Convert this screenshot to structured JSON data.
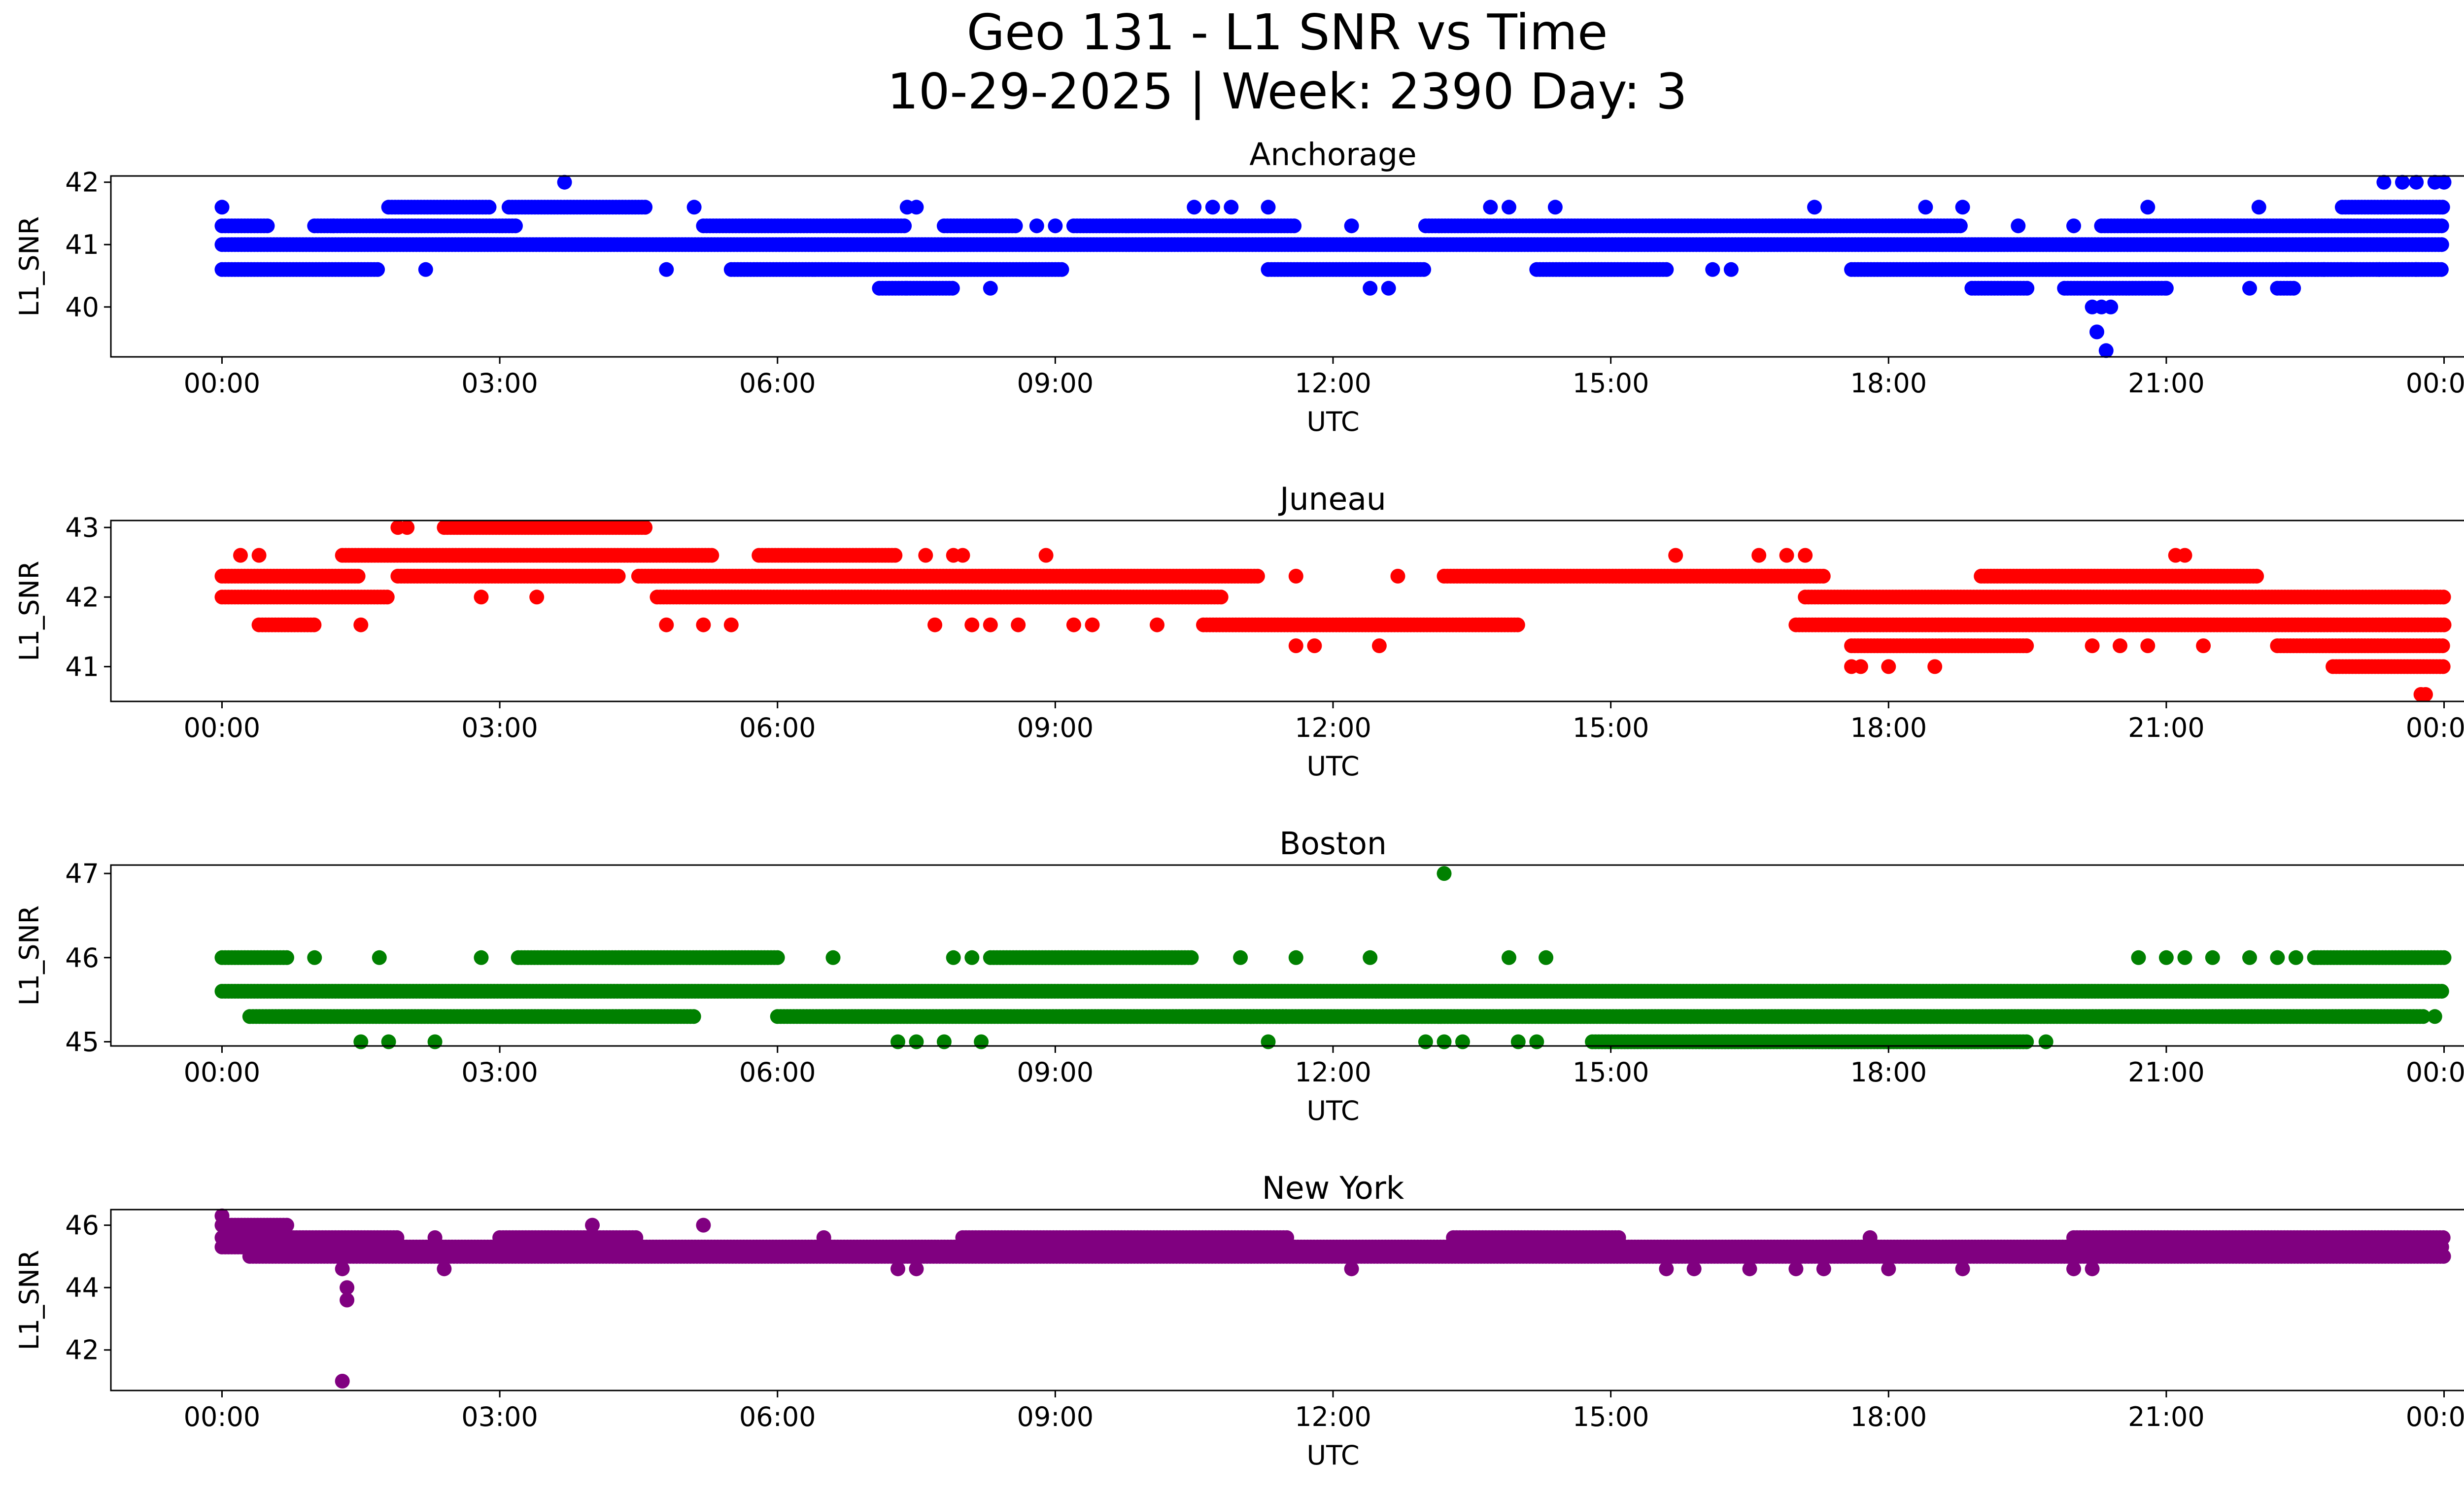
{
  "figure": {
    "title_line1": "Geo 131 - L1 SNR vs Time",
    "title_line2": "10-29-2025 | Week: 2390 Day: 3"
  },
  "chart_data": [
    {
      "type": "scatter",
      "title": "Anchorage",
      "xlabel": "UTC",
      "ylabel": "L1_SNR",
      "color": "#0000ff",
      "xlim": [
        "-01:12",
        "25:12"
      ],
      "ylim": [
        39.2,
        42.1
      ],
      "xticks": [
        "00:00",
        "03:00",
        "06:00",
        "09:00",
        "12:00",
        "15:00",
        "18:00",
        "21:00",
        "00:00"
      ],
      "yticks": [
        40,
        41,
        42
      ],
      "bands": [
        {
          "y": 41.0,
          "segments": [
            [
              0.0,
              24.0
            ]
          ]
        },
        {
          "y": 41.3,
          "segments": [
            [
              0.0,
              0.5
            ],
            [
              1.0,
              3.2
            ],
            [
              5.2,
              7.4
            ],
            [
              7.8,
              8.6
            ],
            [
              9.2,
              11.6
            ],
            [
              13.0,
              18.8
            ],
            [
              20.3,
              24.0
            ]
          ]
        },
        {
          "y": 40.6,
          "segments": [
            [
              0.0,
              1.7
            ],
            [
              5.5,
              9.1
            ],
            [
              11.3,
              13.0
            ],
            [
              14.2,
              15.6
            ],
            [
              17.6,
              24.0
            ]
          ]
        },
        {
          "y": 41.6,
          "segments": [
            [
              1.8,
              2.9
            ],
            [
              3.1,
              4.6
            ],
            [
              22.9,
              24.0
            ]
          ]
        },
        {
          "y": 40.3,
          "segments": [
            [
              7.1,
              7.4
            ],
            [
              7.4,
              7.9
            ],
            [
              18.9,
              19.5
            ],
            [
              19.9,
              21.0
            ],
            [
              22.2,
              22.4
            ]
          ]
        }
      ],
      "points": [
        {
          "x": 0.0,
          "y": 41.6
        },
        {
          "x": 1.2,
          "y": 41.3
        },
        {
          "x": 2.2,
          "y": 40.6
        },
        {
          "x": 3.7,
          "y": 42.0
        },
        {
          "x": 4.8,
          "y": 40.6
        },
        {
          "x": 5.1,
          "y": 41.6
        },
        {
          "x": 7.4,
          "y": 41.6
        },
        {
          "x": 7.5,
          "y": 41.6
        },
        {
          "x": 8.3,
          "y": 40.3
        },
        {
          "x": 8.8,
          "y": 41.3
        },
        {
          "x": 9.0,
          "y": 41.3
        },
        {
          "x": 10.5,
          "y": 41.6
        },
        {
          "x": 10.7,
          "y": 41.6
        },
        {
          "x": 10.9,
          "y": 41.6
        },
        {
          "x": 11.3,
          "y": 41.6
        },
        {
          "x": 12.2,
          "y": 41.3
        },
        {
          "x": 12.4,
          "y": 40.3
        },
        {
          "x": 12.6,
          "y": 40.3
        },
        {
          "x": 13.7,
          "y": 41.6
        },
        {
          "x": 13.9,
          "y": 41.6
        },
        {
          "x": 14.4,
          "y": 41.6
        },
        {
          "x": 16.1,
          "y": 40.6
        },
        {
          "x": 16.3,
          "y": 40.6
        },
        {
          "x": 17.2,
          "y": 41.6
        },
        {
          "x": 18.4,
          "y": 41.6
        },
        {
          "x": 18.8,
          "y": 41.6
        },
        {
          "x": 19.4,
          "y": 41.3
        },
        {
          "x": 20.0,
          "y": 41.3
        },
        {
          "x": 20.2,
          "y": 40.0
        },
        {
          "x": 20.3,
          "y": 40.0
        },
        {
          "x": 20.4,
          "y": 40.0
        },
        {
          "x": 20.25,
          "y": 39.6
        },
        {
          "x": 20.35,
          "y": 39.3
        },
        {
          "x": 20.8,
          "y": 41.6
        },
        {
          "x": 21.0,
          "y": 40.3
        },
        {
          "x": 21.9,
          "y": 40.3
        },
        {
          "x": 22.0,
          "y": 41.6
        },
        {
          "x": 22.3,
          "y": 40.6
        },
        {
          "x": 22.7,
          "y": 40.6
        },
        {
          "x": 23.0,
          "y": 40.6
        },
        {
          "x": 23.3,
          "y": 40.6
        },
        {
          "x": 23.35,
          "y": 42.0
        },
        {
          "x": 23.55,
          "y": 42.0
        },
        {
          "x": 23.7,
          "y": 42.0
        },
        {
          "x": 23.9,
          "y": 42.0
        },
        {
          "x": 24.0,
          "y": 42.0
        },
        {
          "x": 23.7,
          "y": 40.6
        }
      ]
    },
    {
      "type": "scatter",
      "title": "Juneau",
      "xlabel": "UTC",
      "ylabel": "L1_SNR",
      "color": "#ff0000",
      "xlim": [
        "-01:12",
        "25:12"
      ],
      "ylim": [
        40.5,
        43.1
      ],
      "xticks": [
        "00:00",
        "03:00",
        "06:00",
        "09:00",
        "12:00",
        "15:00",
        "18:00",
        "21:00",
        "00:00"
      ],
      "yticks": [
        41,
        42,
        43
      ],
      "bands": [
        {
          "y": 42.3,
          "segments": [
            [
              0.0,
              1.5
            ],
            [
              1.9,
              4.3
            ],
            [
              4.5,
              11.2
            ],
            [
              13.2,
              17.3
            ],
            [
              19.0,
              22.0
            ]
          ]
        },
        {
          "y": 42.0,
          "segments": [
            [
              0.0,
              1.8
            ],
            [
              4.7,
              10.8
            ],
            [
              17.1,
              24.0
            ]
          ]
        },
        {
          "y": 42.6,
          "segments": [
            [
              1.3,
              5.3
            ],
            [
              5.8,
              7.3
            ]
          ]
        },
        {
          "y": 43.0,
          "segments": [
            [
              2.4,
              4.6
            ]
          ]
        },
        {
          "y": 41.6,
          "segments": [
            [
              0.4,
              1.0
            ],
            [
              10.6,
              14.0
            ],
            [
              17.0,
              24.0
            ]
          ]
        },
        {
          "y": 41.3,
          "segments": [
            [
              17.6,
              19.5
            ],
            [
              22.2,
              24.0
            ]
          ]
        },
        {
          "y": 41.0,
          "segments": [
            [
              22.8,
              24.0
            ]
          ]
        }
      ],
      "points": [
        {
          "x": 0.2,
          "y": 42.6
        },
        {
          "x": 0.4,
          "y": 42.6
        },
        {
          "x": 1.5,
          "y": 41.6
        },
        {
          "x": 1.9,
          "y": 43.0
        },
        {
          "x": 2.0,
          "y": 43.0
        },
        {
          "x": 2.8,
          "y": 42.0
        },
        {
          "x": 3.4,
          "y": 42.0
        },
        {
          "x": 4.8,
          "y": 41.6
        },
        {
          "x": 5.2,
          "y": 41.6
        },
        {
          "x": 5.5,
          "y": 41.6
        },
        {
          "x": 7.6,
          "y": 42.6
        },
        {
          "x": 7.7,
          "y": 41.6
        },
        {
          "x": 7.9,
          "y": 42.6
        },
        {
          "x": 8.0,
          "y": 42.6
        },
        {
          "x": 8.1,
          "y": 41.6
        },
        {
          "x": 8.3,
          "y": 41.6
        },
        {
          "x": 8.6,
          "y": 41.6
        },
        {
          "x": 8.9,
          "y": 42.6
        },
        {
          "x": 9.2,
          "y": 41.6
        },
        {
          "x": 9.4,
          "y": 41.6
        },
        {
          "x": 10.1,
          "y": 41.6
        },
        {
          "x": 11.6,
          "y": 41.3
        },
        {
          "x": 11.8,
          "y": 41.3
        },
        {
          "x": 11.6,
          "y": 42.3
        },
        {
          "x": 12.5,
          "y": 41.3
        },
        {
          "x": 12.7,
          "y": 42.3
        },
        {
          "x": 15.7,
          "y": 42.6
        },
        {
          "x": 16.6,
          "y": 42.6
        },
        {
          "x": 16.9,
          "y": 42.6
        },
        {
          "x": 17.1,
          "y": 42.6
        },
        {
          "x": 17.6,
          "y": 41.0
        },
        {
          "x": 17.7,
          "y": 41.0
        },
        {
          "x": 18.0,
          "y": 41.0
        },
        {
          "x": 18.5,
          "y": 41.0
        },
        {
          "x": 20.2,
          "y": 41.3
        },
        {
          "x": 20.5,
          "y": 41.3
        },
        {
          "x": 20.8,
          "y": 41.3
        },
        {
          "x": 21.1,
          "y": 42.6
        },
        {
          "x": 21.2,
          "y": 42.6
        },
        {
          "x": 21.4,
          "y": 41.3
        },
        {
          "x": 23.8,
          "y": 42.0
        },
        {
          "x": 23.8,
          "y": 40.6
        },
        {
          "x": 23.75,
          "y": 40.6
        }
      ]
    },
    {
      "type": "scatter",
      "title": "Boston",
      "xlabel": "UTC",
      "ylabel": "L1_SNR",
      "color": "#008000",
      "xlim": [
        "-01:12",
        "25:12"
      ],
      "ylim": [
        44.95,
        47.1
      ],
      "xticks": [
        "00:00",
        "03:00",
        "06:00",
        "09:00",
        "12:00",
        "15:00",
        "18:00",
        "21:00",
        "00:00"
      ],
      "yticks": [
        45,
        46,
        47
      ],
      "bands": [
        {
          "y": 45.6,
          "segments": [
            [
              0.0,
              24.0
            ]
          ]
        },
        {
          "y": 45.3,
          "segments": [
            [
              0.3,
              5.1
            ],
            [
              6.0,
              11.5
            ],
            [
              11.0,
              23.8
            ]
          ]
        },
        {
          "y": 46.0,
          "segments": [
            [
              0.0,
              0.7
            ],
            [
              3.2,
              6.0
            ],
            [
              8.3,
              10.5
            ],
            [
              22.6,
              24.0
            ]
          ]
        },
        {
          "y": 45.0,
          "segments": [
            [
              14.8,
              19.5
            ]
          ]
        }
      ],
      "points": [
        {
          "x": 1.0,
          "y": 46.0
        },
        {
          "x": 1.7,
          "y": 46.0
        },
        {
          "x": 2.8,
          "y": 46.0
        },
        {
          "x": 6.6,
          "y": 46.0
        },
        {
          "x": 7.9,
          "y": 46.0
        },
        {
          "x": 8.1,
          "y": 46.0
        },
        {
          "x": 11.0,
          "y": 46.0
        },
        {
          "x": 11.6,
          "y": 46.0
        },
        {
          "x": 12.4,
          "y": 46.0
        },
        {
          "x": 13.2,
          "y": 47.0
        },
        {
          "x": 13.9,
          "y": 46.0
        },
        {
          "x": 14.3,
          "y": 46.0
        },
        {
          "x": 1.5,
          "y": 45.0
        },
        {
          "x": 1.8,
          "y": 45.0
        },
        {
          "x": 2.3,
          "y": 45.0
        },
        {
          "x": 7.3,
          "y": 45.0
        },
        {
          "x": 7.5,
          "y": 45.0
        },
        {
          "x": 7.8,
          "y": 45.0
        },
        {
          "x": 8.2,
          "y": 45.0
        },
        {
          "x": 11.3,
          "y": 45.0
        },
        {
          "x": 13.0,
          "y": 45.0
        },
        {
          "x": 13.2,
          "y": 45.0
        },
        {
          "x": 13.4,
          "y": 45.0
        },
        {
          "x": 14.0,
          "y": 45.0
        },
        {
          "x": 14.2,
          "y": 45.0
        },
        {
          "x": 19.7,
          "y": 45.0
        },
        {
          "x": 20.7,
          "y": 46.0
        },
        {
          "x": 21.0,
          "y": 46.0
        },
        {
          "x": 21.2,
          "y": 46.0
        },
        {
          "x": 21.5,
          "y": 46.0
        },
        {
          "x": 21.9,
          "y": 46.0
        },
        {
          "x": 22.2,
          "y": 46.0
        },
        {
          "x": 22.4,
          "y": 46.0
        },
        {
          "x": 23.9,
          "y": 45.3
        }
      ]
    },
    {
      "type": "scatter",
      "title": "New York",
      "xlabel": "UTC",
      "ylabel": "L1_SNR",
      "color": "#800080",
      "xlim": [
        "-01:12",
        "25:12"
      ],
      "ylim": [
        40.7,
        46.5
      ],
      "xticks": [
        "00:00",
        "03:00",
        "06:00",
        "09:00",
        "12:00",
        "15:00",
        "18:00",
        "21:00",
        "00:00"
      ],
      "yticks": [
        42,
        44,
        46
      ],
      "bands": [
        {
          "y": 45.3,
          "segments": [
            [
              0.0,
              24.0
            ]
          ]
        },
        {
          "y": 45.0,
          "segments": [
            [
              0.3,
              24.0
            ]
          ]
        },
        {
          "y": 45.6,
          "segments": [
            [
              0.0,
              1.9
            ],
            [
              3.0,
              4.5
            ],
            [
              8.0,
              11.5
            ],
            [
              13.3,
              15.1
            ],
            [
              20.0,
              24.0
            ]
          ]
        },
        {
          "y": 46.0,
          "segments": [
            [
              0.0,
              0.7
            ]
          ]
        }
      ],
      "points": [
        {
          "x": 0.0,
          "y": 46.3
        },
        {
          "x": 1.3,
          "y": 44.6
        },
        {
          "x": 1.35,
          "y": 44.0
        },
        {
          "x": 1.35,
          "y": 43.6
        },
        {
          "x": 1.3,
          "y": 41.0
        },
        {
          "x": 2.4,
          "y": 44.6
        },
        {
          "x": 2.3,
          "y": 45.6
        },
        {
          "x": 4.0,
          "y": 46.0
        },
        {
          "x": 5.2,
          "y": 46.0
        },
        {
          "x": 6.5,
          "y": 45.6
        },
        {
          "x": 7.3,
          "y": 44.6
        },
        {
          "x": 7.5,
          "y": 44.6
        },
        {
          "x": 12.2,
          "y": 44.6
        },
        {
          "x": 15.6,
          "y": 44.6
        },
        {
          "x": 15.9,
          "y": 44.6
        },
        {
          "x": 17.0,
          "y": 44.6
        },
        {
          "x": 17.3,
          "y": 44.6
        },
        {
          "x": 17.8,
          "y": 45.6
        },
        {
          "x": 18.0,
          "y": 44.6
        },
        {
          "x": 18.8,
          "y": 44.6
        },
        {
          "x": 20.0,
          "y": 44.6
        },
        {
          "x": 20.2,
          "y": 44.6
        },
        {
          "x": 16.5,
          "y": 44.6
        }
      ]
    }
  ]
}
